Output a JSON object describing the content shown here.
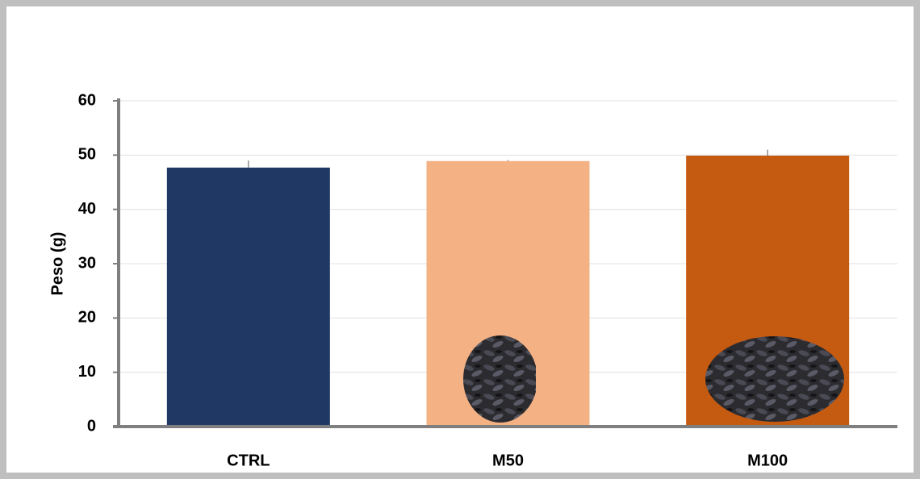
{
  "chart_data": {
    "type": "bar",
    "y_label": "Peso (g)",
    "categories": [
      "CTRL",
      "M50",
      "M100"
    ],
    "values": [
      47.7,
      48.9,
      49.9
    ],
    "errors": [
      1.3,
      0.2,
      1.1
    ],
    "colors": [
      "#1f3864",
      "#f4b183",
      "#c55a11"
    ],
    "ylim": [
      0,
      60
    ],
    "yticks": [
      0,
      10,
      20,
      30,
      40,
      50,
      60
    ],
    "grid": true
  }
}
